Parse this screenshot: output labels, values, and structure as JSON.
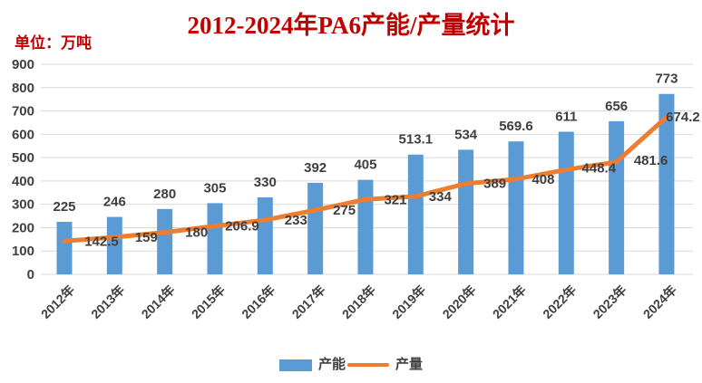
{
  "header": {
    "title": "2012-2024年PA6产能/产量统计",
    "unit_label": "单位：万吨"
  },
  "chart_data": {
    "type": "bar",
    "subtype": "bar-line-combo",
    "title": "2012-2024年PA6产能/产量统计",
    "unit": "单位：万吨",
    "categories": [
      "2012年",
      "2013年",
      "2014年",
      "2015年",
      "2016年",
      "2017年",
      "2018年",
      "2019年",
      "2020年",
      "2021年",
      "2022年",
      "2023年",
      "2024年"
    ],
    "series": [
      {
        "name": "产能",
        "type": "bar",
        "color": "#5B9BD5",
        "values": [
          225,
          246,
          280,
          305,
          330,
          392,
          405,
          513.1,
          534,
          569.6,
          611,
          656,
          773
        ]
      },
      {
        "name": "产量",
        "type": "line",
        "color": "#ED7D31",
        "values": [
          142.5,
          159,
          180,
          206.9,
          233,
          275,
          321,
          334,
          389,
          408,
          448.4,
          481.6,
          674.2
        ]
      }
    ],
    "xlabel": "",
    "ylabel": "单位：万吨",
    "ylim": [
      0,
      900
    ],
    "ytick_step": 100,
    "yticks": [
      0,
      100,
      200,
      300,
      400,
      500,
      600,
      700,
      800,
      900
    ],
    "grid": true,
    "data_labels": true,
    "legend_position": "bottom",
    "colors": {
      "title": "#C00000",
      "unit_label": "#C00000",
      "axis_text": "#404040",
      "data_label": "#3F3F3F",
      "gridline": "#D9D9D9"
    }
  }
}
